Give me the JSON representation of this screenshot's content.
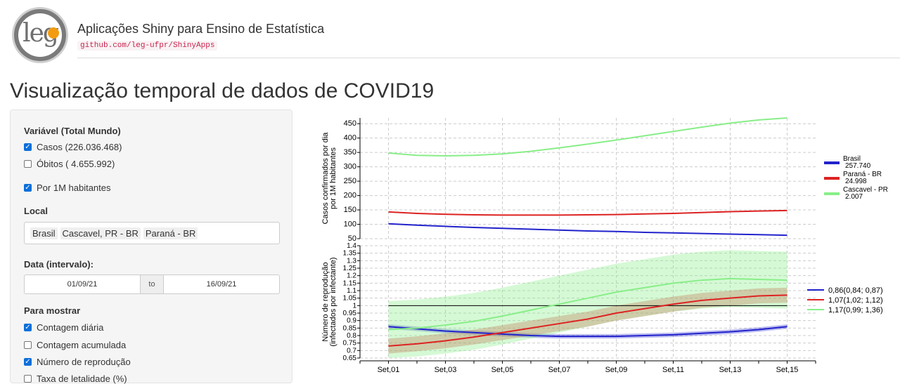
{
  "header": {
    "logo_text": "leg",
    "title": "Aplicações Shiny para Ensino de Estatística",
    "link": "github.com/leg-ufpr/ShinyApps"
  },
  "page": {
    "title": "Visualização temporal de dados de COVID19"
  },
  "sidebar": {
    "variable_label": "Variável (Total Mundo)",
    "cases_label": "Casos (226.036.468)",
    "deaths_label": "Óbitos ( 4.655.992)",
    "per_million_label": "Por 1M habitantes",
    "local_label": "Local",
    "local_chips": [
      "Brasil",
      "Cascavel, PR - BR",
      "Paraná - BR"
    ],
    "date_label": "Data (intervalo):",
    "date_from": "01/09/21",
    "date_sep": "to",
    "date_to": "16/09/21",
    "show_label": "Para mostrar",
    "show_daily": "Contagem diária",
    "show_cumulative": "Contagem acumulada",
    "show_reproduction": "Número de reprodução",
    "show_cut": "Taxa de letalidade (%)"
  },
  "colors": {
    "brasil": "#2222cc",
    "parana": "#dd2222",
    "cascavel": "#88ee88",
    "checkbox": "#0b6fd9"
  },
  "chart_data": [
    {
      "type": "line",
      "ylabel": "Casos confirmados por dia por 1M habitantes",
      "ylim": [
        50,
        470
      ],
      "yticks": [
        50,
        100,
        150,
        200,
        250,
        300,
        350,
        400,
        450
      ],
      "x": [
        1,
        2,
        3,
        4,
        5,
        6,
        7,
        8,
        9,
        10,
        11,
        12,
        13,
        14,
        15
      ],
      "xtick_labels": [
        "Set,01",
        "Set,03",
        "Set,05",
        "Set,07",
        "Set,09",
        "Set,11",
        "Set,13",
        "Set,15"
      ],
      "xtick_positions": [
        1,
        3,
        5,
        7,
        9,
        11,
        13,
        15
      ],
      "grid": true,
      "legend_position": "right",
      "series": [
        {
          "name": "Brasil",
          "legend_sub": "257.740",
          "color": "#2222cc",
          "values": [
            102,
            97,
            93,
            89,
            86,
            83,
            80,
            77,
            75,
            72,
            70,
            68,
            66,
            64,
            62
          ]
        },
        {
          "name": "Paraná - BR",
          "legend_sub": "24.998",
          "color": "#dd2222",
          "values": [
            143,
            138,
            135,
            133,
            132,
            132,
            132,
            133,
            134,
            136,
            138,
            141,
            144,
            146,
            148
          ]
        },
        {
          "name": "Cascavel - PR",
          "legend_sub": "2.007",
          "color": "#88ee88",
          "values": [
            348,
            340,
            338,
            340,
            345,
            354,
            366,
            379,
            393,
            408,
            423,
            438,
            452,
            463,
            470
          ]
        }
      ]
    },
    {
      "type": "line",
      "ylabel": "Número de reprodução (infectados por infectante)",
      "ylim": [
        0.65,
        1.4
      ],
      "yticks": [
        0.65,
        0.7,
        0.75,
        0.8,
        0.85,
        0.9,
        0.95,
        1,
        1.05,
        1.1,
        1.15,
        1.2,
        1.25,
        1.3,
        1.35,
        1.4
      ],
      "x": [
        1,
        2,
        3,
        4,
        5,
        6,
        7,
        8,
        9,
        10,
        11,
        12,
        13,
        14,
        15
      ],
      "xtick_labels": [
        "Set,01",
        "Set,03",
        "Set,05",
        "Set,07",
        "Set,09",
        "Set,11",
        "Set,13",
        "Set,15"
      ],
      "xtick_positions": [
        1,
        3,
        5,
        7,
        9,
        11,
        13,
        15
      ],
      "reference_line": 1,
      "legend_position": "right",
      "series": [
        {
          "name": "0,86(0,84; 0,87)",
          "color": "#2222cc",
          "values": [
            0.86,
            0.845,
            0.83,
            0.82,
            0.81,
            0.8,
            0.795,
            0.795,
            0.795,
            0.8,
            0.805,
            0.815,
            0.825,
            0.84,
            0.86
          ],
          "band": 0.015
        },
        {
          "name": "1,07(1,02; 1,12)",
          "color": "#dd2222",
          "values": [
            0.73,
            0.745,
            0.765,
            0.79,
            0.82,
            0.85,
            0.88,
            0.91,
            0.95,
            0.98,
            1.01,
            1.035,
            1.05,
            1.065,
            1.07
          ],
          "band": 0.05
        },
        {
          "name": "1,17(0,99; 1,36)",
          "color": "#88ee88",
          "values": [
            0.84,
            0.85,
            0.87,
            0.895,
            0.93,
            0.97,
            1.01,
            1.05,
            1.09,
            1.12,
            1.15,
            1.17,
            1.18,
            1.175,
            1.17
          ],
          "band": 0.19
        }
      ]
    }
  ]
}
